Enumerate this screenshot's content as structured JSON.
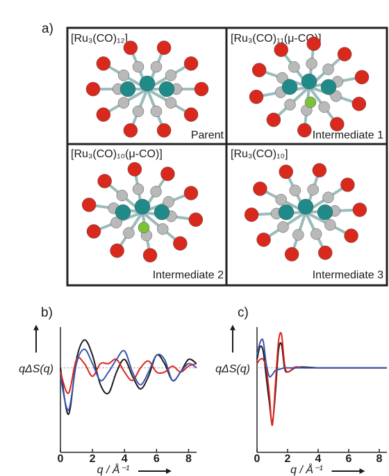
{
  "panel_a": {
    "label": "a)",
    "cells": [
      {
        "title": "[Ru₃(CO)₁₂]",
        "caption": "Parent"
      },
      {
        "title": "[Ru₃(CO)₁₁(μ-CO)]",
        "caption": "Intermediate 1"
      },
      {
        "title": "[Ru₃(CO)₁₀(μ-CO)]",
        "caption": "Intermediate 2"
      },
      {
        "title": "[Ru₃(CO)₁₀]",
        "caption": "Intermediate 3"
      }
    ]
  },
  "chart_data": [
    {
      "type": "line",
      "label": "b)",
      "ylabel": "qΔS(q)",
      "xlabel": "q / Å⁻¹",
      "x": [
        0,
        0.5,
        1,
        1.5,
        2,
        2.5,
        3,
        3.5,
        4,
        4.5,
        5,
        5.5,
        6,
        6.5,
        7,
        7.5,
        8,
        8.5
      ],
      "series": [
        {
          "color": "#1a1a1a",
          "values": [
            0,
            -0.55,
            0.1,
            0.33,
            0.15,
            -0.2,
            -0.3,
            -0.05,
            0.1,
            -0.1,
            -0.25,
            -0.1,
            0.15,
            0.05,
            -0.15,
            -0.05,
            0.1,
            0.05
          ]
        },
        {
          "color": "#e0231c",
          "values": [
            -0.05,
            -0.3,
            0.1,
            0.05,
            -0.1,
            0.05,
            0.05,
            0.1,
            -0.05,
            -0.15,
            0,
            0.08,
            -0.05,
            -0.05,
            0.02,
            -0.05,
            0.02,
            0.05
          ]
        },
        {
          "color": "#3a55b0",
          "values": [
            -0.1,
            -0.5,
            0.05,
            0.22,
            0.05,
            -0.15,
            -0.05,
            0.1,
            0.2,
            -0.05,
            -0.2,
            -0.05,
            0.15,
            0.1,
            -0.15,
            -0.05,
            0.05,
            0
          ]
        }
      ],
      "xlim": [
        0,
        8.5
      ],
      "ylim": [
        -1,
        0.4
      ],
      "xticks": [
        0,
        2,
        4,
        6,
        8
      ],
      "baseline": true
    },
    {
      "type": "line",
      "label": "c)",
      "ylabel": "qΔS(q)",
      "xlabel": "q / Å⁻¹",
      "x": [
        0,
        0.2,
        0.4,
        0.6,
        0.8,
        1,
        1.2,
        1.4,
        1.6,
        1.8,
        2,
        2.5,
        3,
        4,
        5,
        6,
        7,
        8,
        8.5
      ],
      "series": [
        {
          "color": "#1a1a1a",
          "values": [
            0.1,
            0.25,
            0.2,
            -0.1,
            -0.4,
            -0.65,
            -0.3,
            0.2,
            0.28,
            0,
            -0.05,
            0,
            0.01,
            0,
            0,
            0,
            0,
            0,
            0
          ]
        },
        {
          "color": "#e0231c",
          "values": [
            0.05,
            0.1,
            0.1,
            0,
            -0.3,
            -0.68,
            -0.2,
            0.3,
            0.4,
            0.05,
            -0.05,
            0.01,
            0,
            0,
            0,
            0,
            0,
            0,
            0
          ]
        },
        {
          "color": "#3a55b0",
          "values": [
            0.15,
            0.3,
            0.32,
            0.05,
            -0.1,
            -0.08,
            -0.03,
            -0.02,
            -0.01,
            0,
            0,
            0,
            0,
            0,
            0,
            0,
            0,
            0,
            0
          ]
        }
      ],
      "xlim": [
        0,
        8.5
      ],
      "ylim": [
        -1,
        0.4
      ],
      "xticks": [
        0,
        2,
        4,
        6,
        8
      ],
      "baseline": true
    }
  ]
}
